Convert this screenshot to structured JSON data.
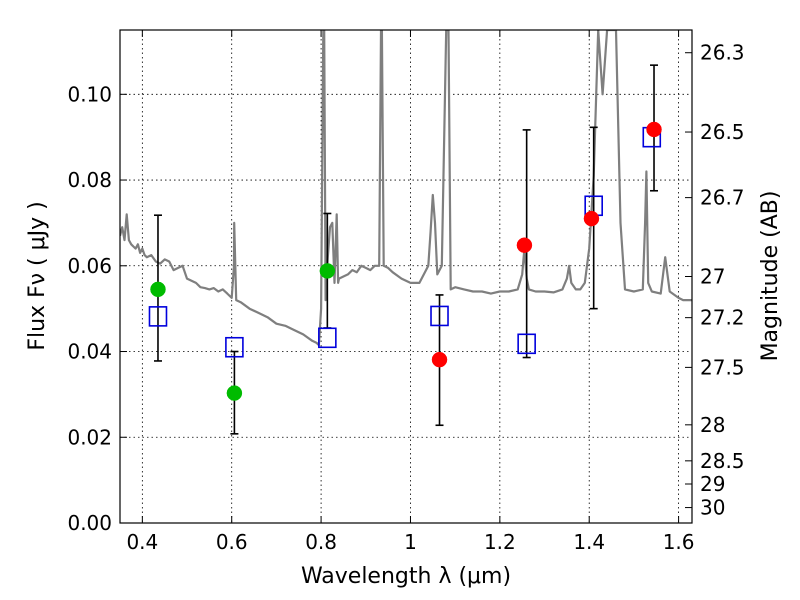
{
  "chart_data": {
    "type": "scatter",
    "xlabel": "Wavelength  λ (μm)",
    "ylabel": "Flux  Fν  ( μJy )",
    "y2label": "Magnitude (AB)",
    "xlim": [
      0.35,
      1.63
    ],
    "ylim": [
      0.0,
      0.115
    ],
    "grid": true,
    "x_ticks": [
      0.4,
      0.6,
      0.8,
      1.0,
      1.2,
      1.4,
      1.6
    ],
    "x_tick_labels": [
      "0.4",
      "0.6",
      "0.8",
      "1",
      "1.2",
      "1.4",
      "1.6"
    ],
    "y_ticks": [
      0.0,
      0.02,
      0.04,
      0.06,
      0.08,
      0.1
    ],
    "y_tick_labels": [
      "0.00",
      "0.02",
      "0.04",
      "0.06",
      "0.08",
      "0.10"
    ],
    "y2_ticks": [
      {
        "label": "26.3",
        "flux": 0.1097
      },
      {
        "label": "26.5",
        "flux": 0.0912
      },
      {
        "label": "26.7",
        "flux": 0.0759
      },
      {
        "label": "27",
        "flux": 0.0575
      },
      {
        "label": "27.2",
        "flux": 0.0479
      },
      {
        "label": "27.5",
        "flux": 0.0363
      },
      {
        "label": "28",
        "flux": 0.0229
      },
      {
        "label": "28.5",
        "flux": 0.0145
      },
      {
        "label": "29",
        "flux": 0.0091
      },
      {
        "label": "30",
        "flux": 0.0036
      }
    ],
    "colors": {
      "optical_points": "#00bb00",
      "nir_points": "#ff0000",
      "model_boxes": "#0000dd",
      "errorbars": "#000000",
      "spectrum": "#7f7f7f"
    },
    "series": [
      {
        "name": "observed flux (optical)",
        "marker": "circle",
        "color": "#00bb00",
        "x": [
          0.435,
          0.606,
          0.814
        ],
        "y": [
          0.0545,
          0.0303,
          0.0588
        ]
      },
      {
        "name": "observed flux (near-IR)",
        "marker": "circle",
        "color": "#ff0000",
        "x": [
          1.065,
          1.255,
          1.405,
          1.545
        ],
        "y": [
          0.0381,
          0.0648,
          0.071,
          0.0918
        ]
      },
      {
        "name": "model band flux",
        "marker": "open-square",
        "color": "#0000dd",
        "x": [
          0.435,
          0.606,
          0.814,
          1.065,
          1.26,
          1.41,
          1.54
        ],
        "y": [
          0.0482,
          0.041,
          0.0432,
          0.0483,
          0.0418,
          0.074,
          0.09
        ]
      },
      {
        "name": "error bars",
        "type": "errorbar",
        "x": [
          0.435,
          0.606,
          0.814,
          1.065,
          1.26,
          1.41,
          1.545
        ],
        "low": [
          0.0378,
          0.0208,
          0.0455,
          0.0228,
          0.0386,
          0.05,
          0.0775
        ],
        "high": [
          0.0718,
          0.04,
          0.0722,
          0.0532,
          0.0917,
          0.0923,
          0.1068
        ]
      },
      {
        "name": "model spectrum",
        "type": "line",
        "color": "#7f7f7f",
        "x": [
          0.35,
          0.355,
          0.36,
          0.365,
          0.37,
          0.375,
          0.38,
          0.385,
          0.39,
          0.395,
          0.4,
          0.405,
          0.41,
          0.42,
          0.43,
          0.44,
          0.45,
          0.46,
          0.47,
          0.48,
          0.49,
          0.5,
          0.51,
          0.52,
          0.53,
          0.54,
          0.55,
          0.56,
          0.57,
          0.58,
          0.59,
          0.6,
          0.605,
          0.6055,
          0.61,
          0.62,
          0.64,
          0.66,
          0.68,
          0.7,
          0.72,
          0.74,
          0.76,
          0.78,
          0.79,
          0.795,
          0.8,
          0.805,
          0.807,
          0.81,
          0.815,
          0.82,
          0.825,
          0.83,
          0.835,
          0.838,
          0.84,
          0.85,
          0.86,
          0.87,
          0.88,
          0.89,
          0.9,
          0.91,
          0.92,
          0.93,
          0.934,
          0.936,
          0.94,
          0.95,
          0.96,
          0.98,
          1.0,
          1.02,
          1.04,
          1.045,
          1.05,
          1.055,
          1.06,
          1.07,
          1.08,
          1.085,
          1.09,
          1.1,
          1.12,
          1.14,
          1.16,
          1.18,
          1.2,
          1.22,
          1.24,
          1.25,
          1.255,
          1.26,
          1.265,
          1.28,
          1.3,
          1.32,
          1.34,
          1.35,
          1.355,
          1.36,
          1.37,
          1.38,
          1.39,
          1.4,
          1.41,
          1.42,
          1.43,
          1.44,
          1.45,
          1.46,
          1.47,
          1.48,
          1.5,
          1.52,
          1.525,
          1.528,
          1.532,
          1.54,
          1.56,
          1.57,
          1.58,
          1.6,
          1.61,
          1.63
        ],
        "y": [
          0.067,
          0.069,
          0.066,
          0.072,
          0.066,
          0.065,
          0.0645,
          0.064,
          0.065,
          0.063,
          0.064,
          0.0625,
          0.062,
          0.0625,
          0.061,
          0.0605,
          0.0615,
          0.061,
          0.059,
          0.0595,
          0.06,
          0.057,
          0.0565,
          0.056,
          0.055,
          0.0548,
          0.0545,
          0.0548,
          0.054,
          0.0545,
          0.0535,
          0.0525,
          0.06,
          0.07,
          0.052,
          0.0515,
          0.05,
          0.049,
          0.048,
          0.0465,
          0.046,
          0.045,
          0.044,
          0.0425,
          0.042,
          0.0415,
          0.05,
          0.115,
          0.115,
          0.052,
          0.062,
          0.069,
          0.07,
          0.056,
          0.072,
          0.056,
          0.057,
          0.0575,
          0.058,
          0.059,
          0.0585,
          0.06,
          0.0595,
          0.059,
          0.06,
          0.06,
          0.115,
          0.115,
          0.06,
          0.0595,
          0.0585,
          0.057,
          0.056,
          0.056,
          0.06,
          0.068,
          0.0765,
          0.07,
          0.058,
          0.06,
          0.115,
          0.115,
          0.0545,
          0.055,
          0.0545,
          0.054,
          0.054,
          0.0535,
          0.054,
          0.054,
          0.0545,
          0.058,
          0.064,
          0.057,
          0.0545,
          0.054,
          0.054,
          0.0538,
          0.0545,
          0.057,
          0.06,
          0.056,
          0.0545,
          0.0545,
          0.056,
          0.064,
          0.081,
          0.115,
          0.1,
          0.115,
          0.115,
          0.115,
          0.07,
          0.0545,
          0.054,
          0.0545,
          0.07,
          0.082,
          0.056,
          0.054,
          0.0535,
          0.062,
          0.054,
          0.0525,
          0.052,
          0.052
        ]
      }
    ]
  }
}
